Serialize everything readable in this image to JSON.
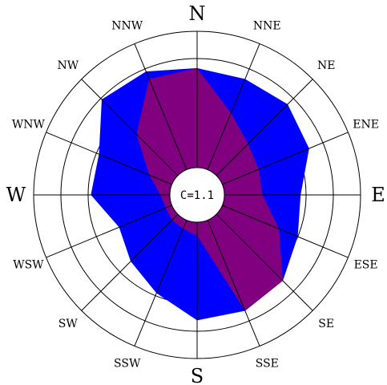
{
  "chart_data": {
    "type": "wind-rose",
    "calm_label": "C=1.1",
    "directions": [
      "N",
      "NNE",
      "NE",
      "ENE",
      "E",
      "ESE",
      "SE",
      "SSE",
      "S",
      "SSW",
      "SW",
      "WSW",
      "W",
      "WNW",
      "NW",
      "NNW"
    ],
    "rmax": 6,
    "rings": [
      1,
      2,
      3,
      4,
      5,
      6
    ],
    "calm_radius": 1,
    "series": [
      {
        "color": "#0000ff",
        "values": [
          4.65,
          4.6,
          4.7,
          4.45,
          3.8,
          4.0,
          4.45,
          4.6,
          4.6,
          3.9,
          3.45,
          3.1,
          3.9,
          3.9,
          4.95,
          4.9
        ]
      },
      {
        "color": "#800080",
        "values": [
          4.65,
          3.25,
          2.65,
          2.45,
          2.4,
          3.25,
          4.45,
          4.6,
          1.5,
          1.35,
          1.3,
          1.25,
          1.35,
          1.9,
          3.15,
          4.6
        ]
      }
    ]
  }
}
